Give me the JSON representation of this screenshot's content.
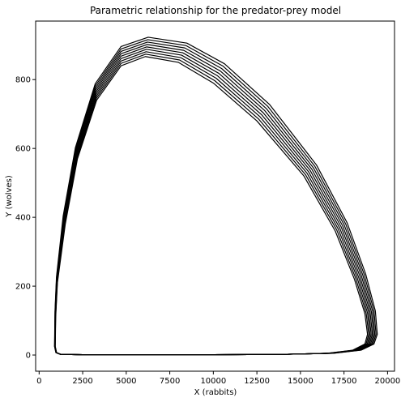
{
  "chart_data": {
    "type": "line",
    "title": "Parametric relationship for the predator-prey model",
    "xlabel": "X (rabbits)",
    "ylabel": "Y (wolves)",
    "xlim": [
      -200,
      20400
    ],
    "ylim": [
      -47,
      970
    ],
    "xticks": [
      0,
      2500,
      5000,
      7500,
      10000,
      12500,
      15000,
      17500,
      20000
    ],
    "yticks": [
      0,
      200,
      400,
      600,
      800
    ],
    "xtick_labels": [
      "0",
      "2500",
      "5000",
      "7500",
      "10000",
      "12500",
      "15000",
      "17500",
      "20000"
    ],
    "ytick_labels": [
      "0",
      "200",
      "400",
      "600",
      "800"
    ],
    "grid": false,
    "legend": "none",
    "line_color": "#000000",
    "series": [
      {
        "values": [
          [
            950,
            110
          ],
          [
            925,
            25
          ],
          [
            1000,
            7
          ],
          [
            1250,
            2
          ],
          [
            2500,
            1
          ],
          [
            6000,
            1
          ],
          [
            10000,
            1
          ],
          [
            14000,
            2
          ],
          [
            16500,
            5
          ],
          [
            18000,
            14
          ],
          [
            18700,
            32
          ],
          [
            18850,
            60
          ],
          [
            18700,
            120
          ],
          [
            18100,
            220
          ],
          [
            17000,
            360
          ],
          [
            15200,
            520
          ],
          [
            12500,
            680
          ],
          [
            10000,
            790
          ],
          [
            8000,
            850
          ],
          [
            6100,
            867
          ],
          [
            4700,
            840
          ],
          [
            3300,
            740
          ],
          [
            2200,
            570
          ],
          [
            1500,
            380
          ],
          [
            1050,
            210
          ],
          [
            950,
            110
          ]
        ]
      },
      {
        "values": [
          [
            945,
            112
          ],
          [
            920,
            25
          ],
          [
            995,
            7
          ],
          [
            1245,
            2
          ],
          [
            2500,
            1
          ],
          [
            6000,
            1
          ],
          [
            10000,
            1
          ],
          [
            14000,
            2
          ],
          [
            16550,
            5
          ],
          [
            18060,
            14
          ],
          [
            18765,
            32
          ],
          [
            18920,
            60
          ],
          [
            18775,
            121
          ],
          [
            18180,
            222
          ],
          [
            17085,
            363
          ],
          [
            15290,
            524
          ],
          [
            12590,
            686
          ],
          [
            10080,
            797
          ],
          [
            8060,
            857
          ],
          [
            6120,
            874
          ],
          [
            4700,
            847
          ],
          [
            3290,
            746
          ],
          [
            2185,
            574
          ],
          [
            1485,
            383
          ],
          [
            1043,
            212
          ],
          [
            945,
            112
          ]
        ]
      },
      {
        "values": [
          [
            940,
            114
          ],
          [
            915,
            25
          ],
          [
            990,
            7
          ],
          [
            1240,
            2
          ],
          [
            2500,
            1
          ],
          [
            6000,
            1
          ],
          [
            10000,
            1
          ],
          [
            14000,
            2
          ],
          [
            16600,
            5
          ],
          [
            18120,
            14
          ],
          [
            18830,
            32
          ],
          [
            18990,
            60
          ],
          [
            18850,
            122
          ],
          [
            18260,
            224
          ],
          [
            17170,
            366
          ],
          [
            15380,
            528
          ],
          [
            12680,
            692
          ],
          [
            10160,
            804
          ],
          [
            8120,
            864
          ],
          [
            6140,
            881
          ],
          [
            4700,
            854
          ],
          [
            3280,
            752
          ],
          [
            2170,
            578
          ],
          [
            1470,
            386
          ],
          [
            1036,
            214
          ],
          [
            940,
            114
          ]
        ]
      },
      {
        "values": [
          [
            935,
            116
          ],
          [
            910,
            25
          ],
          [
            985,
            7
          ],
          [
            1235,
            2
          ],
          [
            2500,
            1
          ],
          [
            6000,
            1
          ],
          [
            10000,
            1
          ],
          [
            14000,
            2
          ],
          [
            16650,
            5
          ],
          [
            18180,
            14
          ],
          [
            18895,
            32
          ],
          [
            19060,
            60
          ],
          [
            18925,
            123
          ],
          [
            18340,
            226
          ],
          [
            17255,
            369
          ],
          [
            15470,
            532
          ],
          [
            12770,
            698
          ],
          [
            10240,
            811
          ],
          [
            8180,
            871
          ],
          [
            6160,
            888
          ],
          [
            4700,
            861
          ],
          [
            3270,
            758
          ],
          [
            2155,
            582
          ],
          [
            1455,
            389
          ],
          [
            1029,
            216
          ],
          [
            935,
            116
          ]
        ]
      },
      {
        "values": [
          [
            930,
            118
          ],
          [
            905,
            25
          ],
          [
            980,
            7
          ],
          [
            1230,
            2
          ],
          [
            2500,
            1
          ],
          [
            6000,
            1
          ],
          [
            10000,
            1
          ],
          [
            14000,
            2
          ],
          [
            16700,
            5
          ],
          [
            18240,
            14
          ],
          [
            18960,
            32
          ],
          [
            19130,
            60
          ],
          [
            19000,
            124
          ],
          [
            18420,
            228
          ],
          [
            17340,
            372
          ],
          [
            15560,
            536
          ],
          [
            12860,
            704
          ],
          [
            10320,
            818
          ],
          [
            8240,
            878
          ],
          [
            6180,
            895
          ],
          [
            4700,
            868
          ],
          [
            3260,
            764
          ],
          [
            2140,
            586
          ],
          [
            1440,
            392
          ],
          [
            1022,
            218
          ],
          [
            930,
            118
          ]
        ]
      },
      {
        "values": [
          [
            925,
            120
          ],
          [
            900,
            25
          ],
          [
            975,
            7
          ],
          [
            1225,
            2
          ],
          [
            2500,
            1
          ],
          [
            6000,
            1
          ],
          [
            10000,
            1
          ],
          [
            14000,
            2
          ],
          [
            16750,
            5
          ],
          [
            18300,
            14
          ],
          [
            19025,
            32
          ],
          [
            19200,
            60
          ],
          [
            19075,
            125
          ],
          [
            18500,
            230
          ],
          [
            17425,
            375
          ],
          [
            15650,
            540
          ],
          [
            12950,
            710
          ],
          [
            10400,
            825
          ],
          [
            8300,
            885
          ],
          [
            6200,
            902
          ],
          [
            4700,
            875
          ],
          [
            3250,
            770
          ],
          [
            2125,
            590
          ],
          [
            1425,
            395
          ],
          [
            1015,
            220
          ],
          [
            925,
            120
          ]
        ]
      },
      {
        "values": [
          [
            920,
            122
          ],
          [
            895,
            25
          ],
          [
            970,
            7
          ],
          [
            1220,
            2
          ],
          [
            2500,
            1
          ],
          [
            6000,
            1
          ],
          [
            10000,
            1
          ],
          [
            14000,
            2
          ],
          [
            16800,
            5
          ],
          [
            18360,
            14
          ],
          [
            19090,
            32
          ],
          [
            19270,
            60
          ],
          [
            19150,
            126
          ],
          [
            18580,
            232
          ],
          [
            17510,
            378
          ],
          [
            15740,
            544
          ],
          [
            13040,
            716
          ],
          [
            10480,
            832
          ],
          [
            8360,
            892
          ],
          [
            6220,
            909
          ],
          [
            4700,
            882
          ],
          [
            3240,
            776
          ],
          [
            2110,
            594
          ],
          [
            1410,
            398
          ],
          [
            1008,
            222
          ],
          [
            920,
            122
          ]
        ]
      },
      {
        "values": [
          [
            915,
            124
          ],
          [
            890,
            25
          ],
          [
            965,
            7
          ],
          [
            1215,
            2
          ],
          [
            2500,
            1
          ],
          [
            6000,
            1
          ],
          [
            10000,
            1
          ],
          [
            14000,
            2
          ],
          [
            16850,
            5
          ],
          [
            18420,
            14
          ],
          [
            19155,
            32
          ],
          [
            19340,
            60
          ],
          [
            19225,
            127
          ],
          [
            18660,
            234
          ],
          [
            17595,
            381
          ],
          [
            15830,
            548
          ],
          [
            13130,
            722
          ],
          [
            10560,
            839
          ],
          [
            8420,
            899
          ],
          [
            6240,
            916
          ],
          [
            4700,
            889
          ],
          [
            3230,
            782
          ],
          [
            2095,
            598
          ],
          [
            1395,
            401
          ],
          [
            1001,
            224
          ],
          [
            915,
            124
          ]
        ]
      },
      {
        "values": [
          [
            910,
            126
          ],
          [
            885,
            25
          ],
          [
            960,
            7
          ],
          [
            1210,
            2
          ],
          [
            2500,
            1
          ],
          [
            6000,
            1
          ],
          [
            10000,
            1
          ],
          [
            14000,
            2
          ],
          [
            16900,
            5
          ],
          [
            18480,
            14
          ],
          [
            19220,
            32
          ],
          [
            19410,
            60
          ],
          [
            19300,
            128
          ],
          [
            18740,
            236
          ],
          [
            17680,
            384
          ],
          [
            15920,
            552
          ],
          [
            13220,
            728
          ],
          [
            10640,
            846
          ],
          [
            8480,
            906
          ],
          [
            6260,
            923
          ],
          [
            4700,
            896
          ],
          [
            3220,
            788
          ],
          [
            2080,
            602
          ],
          [
            1380,
            404
          ],
          [
            994,
            226
          ],
          [
            910,
            126
          ]
        ]
      }
    ]
  }
}
